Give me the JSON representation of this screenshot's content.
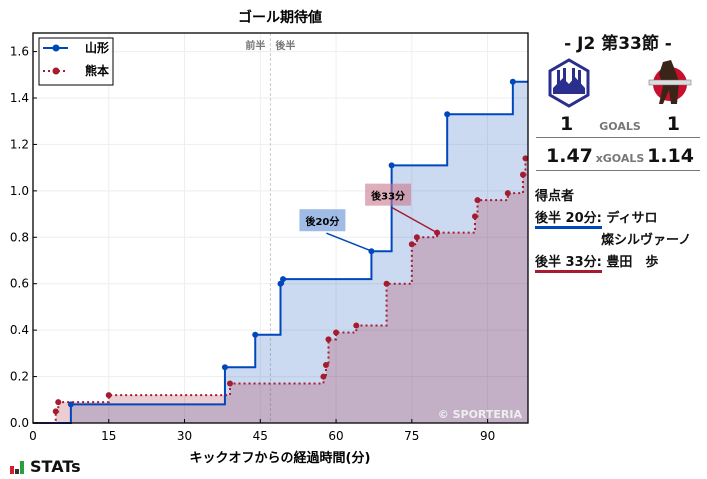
{
  "header": {
    "title": "ゴール期待値"
  },
  "match": {
    "round": "- J2 第33節 -",
    "home": {
      "name": "山形",
      "goals": "1",
      "xg": "1.47",
      "color": "#0047BB"
    },
    "away": {
      "name": "熊本",
      "goals": "1",
      "xg": "1.14",
      "color": "#A51C30"
    },
    "goals_label": "GOALS",
    "xgoals_label": "xGOALS"
  },
  "scorers": {
    "title": "得点者",
    "items": [
      {
        "time": "後半 20分:",
        "name_lines": [
          "ディサロ",
          "燦シルヴァーノ"
        ],
        "team": "home"
      },
      {
        "time": "後半 33分:",
        "name_lines": [
          "豊田　歩"
        ],
        "team": "away"
      }
    ]
  },
  "footer": {
    "brand": "STATs",
    "copyright": "© SPORTERIA"
  },
  "chart_data": {
    "type": "line",
    "title": "ゴール期待値",
    "xlabel": "キックオフからの経過時間(分)",
    "ylabel": "",
    "xlim": [
      0,
      98
    ],
    "ylim": [
      0,
      1.68
    ],
    "xticks": [
      0,
      15,
      30,
      45,
      60,
      75,
      90
    ],
    "yticks": [
      0.0,
      0.2,
      0.4,
      0.6,
      0.8,
      1.0,
      1.2,
      1.4,
      1.6
    ],
    "grid": true,
    "legend_position": "upper left",
    "half_divider": {
      "x": 47,
      "labels": [
        "前半",
        "後半"
      ]
    },
    "step": true,
    "series": [
      {
        "name": "山形",
        "style": "solid",
        "color": "#0047BB",
        "x": [
          0,
          7.5,
          38,
          44,
          49,
          49.5,
          67,
          71,
          82,
          95,
          98
        ],
        "values": [
          0,
          0.08,
          0.24,
          0.38,
          0.6,
          0.62,
          0.74,
          1.11,
          1.33,
          1.47,
          1.47
        ]
      },
      {
        "name": "熊本",
        "style": "dotted",
        "color": "#A51C30",
        "x": [
          0,
          4.5,
          5,
          15,
          39,
          57.5,
          58,
          58.5,
          60,
          64,
          70,
          75,
          76,
          80,
          87.5,
          88,
          94,
          97,
          97.5,
          98
        ],
        "values": [
          0,
          0.05,
          0.09,
          0.12,
          0.17,
          0.2,
          0.25,
          0.36,
          0.39,
          0.42,
          0.6,
          0.77,
          0.8,
          0.82,
          0.89,
          0.96,
          0.99,
          1.07,
          1.14,
          1.14
        ]
      }
    ],
    "annotations": [
      {
        "text": "後20分",
        "x": 67,
        "y": 0.74,
        "team": "home"
      },
      {
        "text": "後33分",
        "x": 80,
        "y": 0.82,
        "team": "away"
      }
    ]
  }
}
